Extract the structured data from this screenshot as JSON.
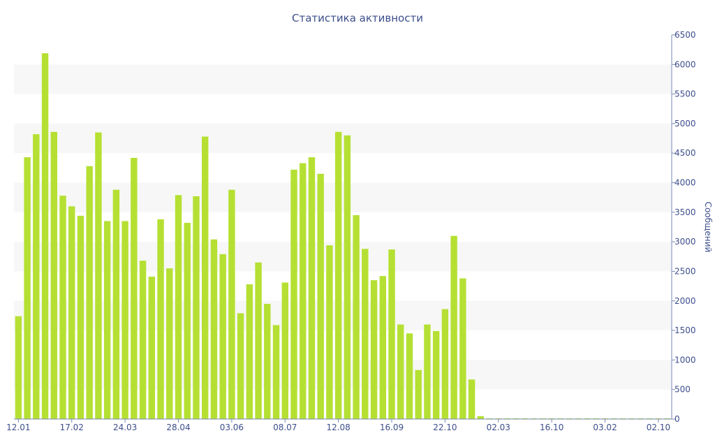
{
  "chart_data": {
    "type": "bar",
    "title": "Статистика активности",
    "xlabel": "",
    "ylabel": "Сообщений",
    "ylim": [
      0,
      6500
    ],
    "yticks": [
      0,
      500,
      1000,
      1500,
      2000,
      2500,
      3000,
      3500,
      4000,
      4500,
      5000,
      5500,
      6000,
      6500
    ],
    "xtick_labels": [
      {
        "label": "12.01",
        "index": 0
      },
      {
        "label": "17.02",
        "index": 6
      },
      {
        "label": "24.03",
        "index": 12
      },
      {
        "label": "28.04",
        "index": 18
      },
      {
        "label": "03.06",
        "index": 24
      },
      {
        "label": "08.07",
        "index": 30
      },
      {
        "label": "12.08",
        "index": 36
      },
      {
        "label": "16.09",
        "index": 42
      },
      {
        "label": "22.10",
        "index": 48
      },
      {
        "label": "02.03",
        "index": 54
      },
      {
        "label": "16.10",
        "index": 60
      },
      {
        "label": "03.02",
        "index": 66
      },
      {
        "label": "02.10",
        "index": 72
      }
    ],
    "values": [
      1740,
      4430,
      4820,
      6190,
      4860,
      3780,
      3600,
      3440,
      4280,
      4850,
      3350,
      3880,
      3350,
      4420,
      2680,
      2410,
      3380,
      2550,
      3790,
      3320,
      3770,
      4780,
      3040,
      2790,
      3880,
      1790,
      2280,
      2650,
      1950,
      1590,
      2310,
      4220,
      4330,
      4430,
      4150,
      2940,
      4860,
      4800,
      3450,
      2880,
      2350,
      2420,
      2870,
      1600,
      1450,
      830,
      1600,
      1490,
      1860,
      3100,
      2380,
      670,
      50,
      10,
      10,
      10,
      10,
      10,
      10,
      10,
      10,
      10,
      10,
      10,
      10,
      10,
      10,
      10,
      10,
      10,
      10,
      10,
      10,
      10
    ],
    "grid": "alternating horizontal bands",
    "y_axis_position": "right",
    "colors": {
      "bar": "#b5e033",
      "band": "#f7f7f7",
      "axis": "#7a88b4",
      "text": "#3c4e8c"
    }
  }
}
